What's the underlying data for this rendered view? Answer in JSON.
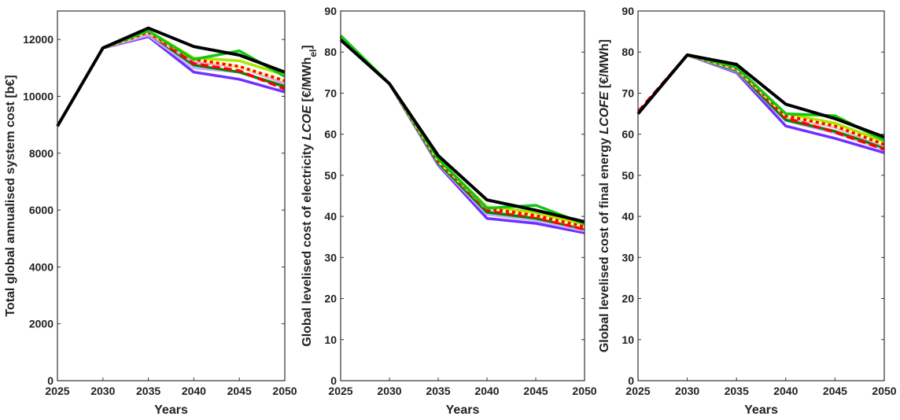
{
  "chart_data": [
    {
      "type": "line",
      "xlabel": "Years",
      "ylabel": "Total global annualised system cost [b€]",
      "x": [
        2025,
        2030,
        2035,
        2040,
        2045,
        2050
      ],
      "xticks": [
        "2025",
        "2030",
        "2035",
        "2040",
        "2045",
        "2050"
      ],
      "ylim": [
        0,
        13000
      ],
      "yticks": [
        "0",
        "2000",
        "4000",
        "6000",
        "8000",
        "10000",
        "12000"
      ],
      "series": [
        {
          "name": "purple",
          "values": [
            8950,
            11700,
            12100,
            10850,
            10600,
            10150
          ]
        },
        {
          "name": "lavender",
          "values": [
            8950,
            11700,
            12150,
            11000,
            10850,
            10300
          ]
        },
        {
          "name": "dark-green",
          "values": [
            8950,
            11700,
            12200,
            11100,
            10850,
            10350
          ]
        },
        {
          "name": "pink",
          "values": [
            8950,
            11700,
            12200,
            11200,
            11050,
            10450
          ]
        },
        {
          "name": "red-dashed",
          "values": [
            8950,
            11700,
            12250,
            11150,
            10900,
            10250
          ]
        },
        {
          "name": "yellow-green",
          "values": [
            8950,
            11700,
            12300,
            11350,
            11250,
            10750
          ]
        },
        {
          "name": "yellow-red-dotted",
          "values": [
            8950,
            11700,
            12250,
            11300,
            11050,
            10550
          ]
        },
        {
          "name": "green",
          "values": [
            8950,
            11700,
            12300,
            11300,
            11600,
            10700
          ]
        },
        {
          "name": "black",
          "values": [
            8950,
            11700,
            12400,
            11750,
            11450,
            10850
          ]
        }
      ]
    },
    {
      "type": "line",
      "xlabel": "Years",
      "ylabel": "Global levelised cost of electricity LCOE [€/MWh_el]",
      "ylabel_parts": [
        "Global levelised cost of electricity ",
        "LCOE",
        " [€/MWh",
        "el",
        "]"
      ],
      "x": [
        2025,
        2030,
        2035,
        2040,
        2045,
        2050
      ],
      "xticks": [
        "2025",
        "2030",
        "2035",
        "2040",
        "2045",
        "2050"
      ],
      "ylim": [
        0,
        90
      ],
      "yticks": [
        "0",
        "10",
        "20",
        "30",
        "40",
        "50",
        "60",
        "70",
        "80",
        "90"
      ],
      "series": [
        {
          "name": "purple",
          "values": [
            83.5,
            72.3,
            52.5,
            39.5,
            38.3,
            36
          ]
        },
        {
          "name": "lavender",
          "values": [
            83.5,
            72.3,
            52.8,
            40.5,
            39,
            36.5
          ]
        },
        {
          "name": "dark-green",
          "values": [
            83.5,
            72.3,
            53,
            41,
            39.5,
            37
          ]
        },
        {
          "name": "pink",
          "values": [
            83.5,
            72.3,
            53.5,
            41.7,
            40.3,
            37.3
          ]
        },
        {
          "name": "red-dashed",
          "values": [
            83.8,
            72.3,
            53.5,
            41.5,
            39.8,
            36.8
          ]
        },
        {
          "name": "yellow-green",
          "values": [
            83.5,
            72.3,
            54,
            42.3,
            41,
            38
          ]
        },
        {
          "name": "yellow-red-dotted",
          "values": [
            83.5,
            72.3,
            53.5,
            42,
            40.2,
            37.5
          ]
        },
        {
          "name": "green",
          "values": [
            84,
            72.3,
            54,
            42,
            42.7,
            38.2
          ]
        },
        {
          "name": "black",
          "values": [
            83,
            72.3,
            54.8,
            44,
            41.5,
            38.7
          ]
        }
      ]
    },
    {
      "type": "line",
      "xlabel": "Years",
      "ylabel": "Global levelised cost of final energy LCOFE [€/MWh]",
      "ylabel_parts": [
        "Global levelised cost of final energy ",
        "LCOFE",
        " [€/MWh]"
      ],
      "x": [
        2025,
        2030,
        2035,
        2040,
        2045,
        2050
      ],
      "xticks": [
        "2025",
        "2030",
        "2035",
        "2040",
        "2045",
        "2050"
      ],
      "ylim": [
        0,
        90
      ],
      "yticks": [
        "0",
        "10",
        "20",
        "30",
        "40",
        "50",
        "60",
        "70",
        "80",
        "90"
      ],
      "series": [
        {
          "name": "purple",
          "values": [
            65,
            79.3,
            75,
            62,
            59,
            55.5
          ]
        },
        {
          "name": "lavender",
          "values": [
            65,
            79.3,
            75.3,
            63.3,
            60.3,
            56.3
          ]
        },
        {
          "name": "dark-green",
          "values": [
            65,
            79.3,
            75.5,
            63.5,
            60.7,
            56.7
          ]
        },
        {
          "name": "pink",
          "values": [
            65,
            79.3,
            75.8,
            64.3,
            61.7,
            57.2
          ]
        },
        {
          "name": "red-dashed",
          "values": [
            65.5,
            79.3,
            76,
            64,
            60.5,
            56.3
          ]
        },
        {
          "name": "yellow-green",
          "values": [
            65,
            79.3,
            76.3,
            65,
            62.7,
            58.2
          ]
        },
        {
          "name": "yellow-red-dotted",
          "values": [
            65,
            79.3,
            76,
            64.5,
            62,
            57.5
          ]
        },
        {
          "name": "green",
          "values": [
            65,
            79.3,
            76.3,
            65,
            64.5,
            58.5
          ]
        },
        {
          "name": "black",
          "values": [
            65,
            79.3,
            77,
            67.3,
            63.8,
            59.3
          ]
        }
      ]
    }
  ],
  "colors": {
    "purple": "#7030ff",
    "lavender": "#c8b4ff",
    "dark-green": "#008a00",
    "pink": "#e8a0e8",
    "red-dashed": "#ff0000",
    "yellow-green": "#a8e800",
    "yellow-red-dotted": "#ffff80",
    "green": "#10c810",
    "black": "#000000",
    "dot": "#ff0000"
  }
}
